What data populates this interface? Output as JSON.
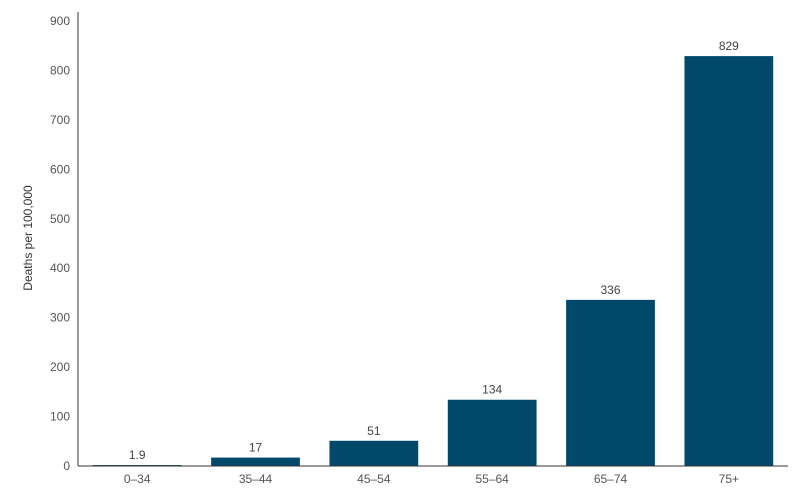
{
  "chart_data": {
    "type": "bar",
    "title": "",
    "xlabel": "",
    "ylabel": "Deaths per 100,000",
    "categories": [
      "0–34",
      "35–44",
      "45–54",
      "55–64",
      "65–74",
      "75+"
    ],
    "values": [
      1.9,
      17,
      51,
      134,
      336,
      829
    ],
    "data_labels": [
      "1.9",
      "17",
      "51",
      "134",
      "336",
      "829"
    ],
    "ylim": [
      0,
      900
    ],
    "yticks": [
      0,
      100,
      200,
      300,
      400,
      500,
      600,
      700,
      800,
      900
    ],
    "grid": false,
    "legend": "none",
    "bar_color": "#00496b"
  }
}
